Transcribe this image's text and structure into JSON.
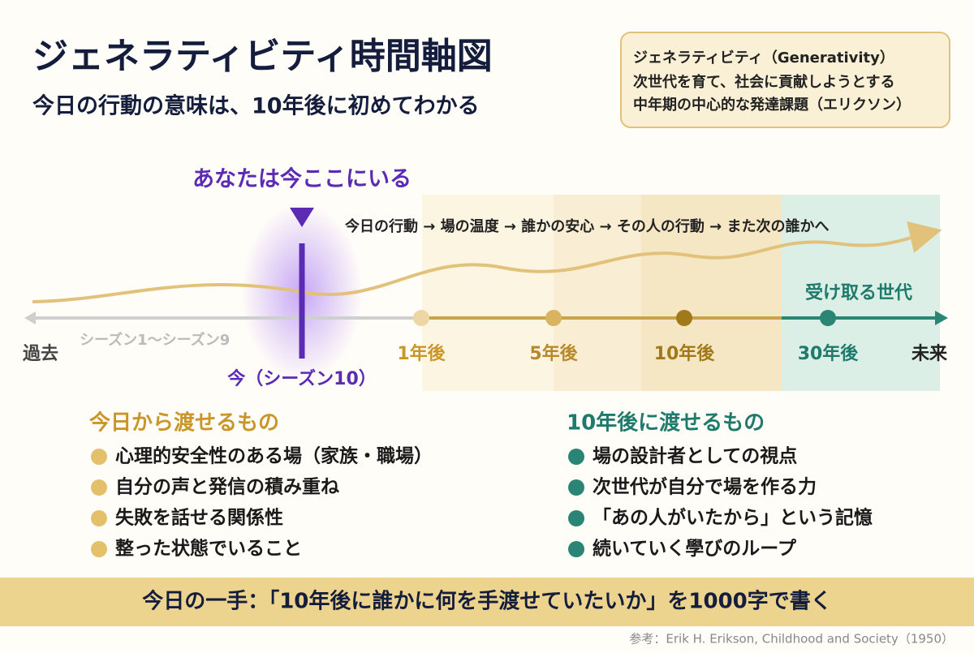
{
  "header": {
    "title": "ジェネラティビティ時間軸図",
    "subtitle": "今日の行動の意味は、10年後に初めてわかる"
  },
  "definition": {
    "lines": [
      "ジェネラティビティ（Generativity）",
      "次世代を育て、社会に貢献しようとする",
      "中年期の中心的な発達課題（エリクソン）"
    ]
  },
  "timeline": {
    "marker": "あなたは今ここにいる",
    "flow": "今日の行動 → 場の温度 → 誰かの安心 → その人の行動 → また次の誰かへ",
    "past": "過去",
    "seasons": "シーズン1〜シーズン9",
    "now": "今（シーズン10）",
    "points": [
      "1年後",
      "5年後",
      "10年後",
      "30年後"
    ],
    "future": "未来",
    "receivers": "受け取る世代"
  },
  "lists": [
    {
      "title": "今日から渡せるもの",
      "items": [
        "心理的安全性のある場（家族・職場）",
        "自分の声と発信の積み重ね",
        "失敗を話せる関係性",
        "整った状態でいること"
      ]
    },
    {
      "title": "10年後に渡せるもの",
      "items": [
        "場の設計者としての視点",
        "次世代が自分で場を作る力",
        "「あの人がいたから」という記憶",
        "続いていく學びのループ"
      ]
    }
  ],
  "footer": {
    "action": "今日の一手：「10年後に誰かに何を手渡せていたいか」を1000字で書く",
    "reference": "参考：Erik H. Erikson, Childhood and Society（1950）"
  }
}
